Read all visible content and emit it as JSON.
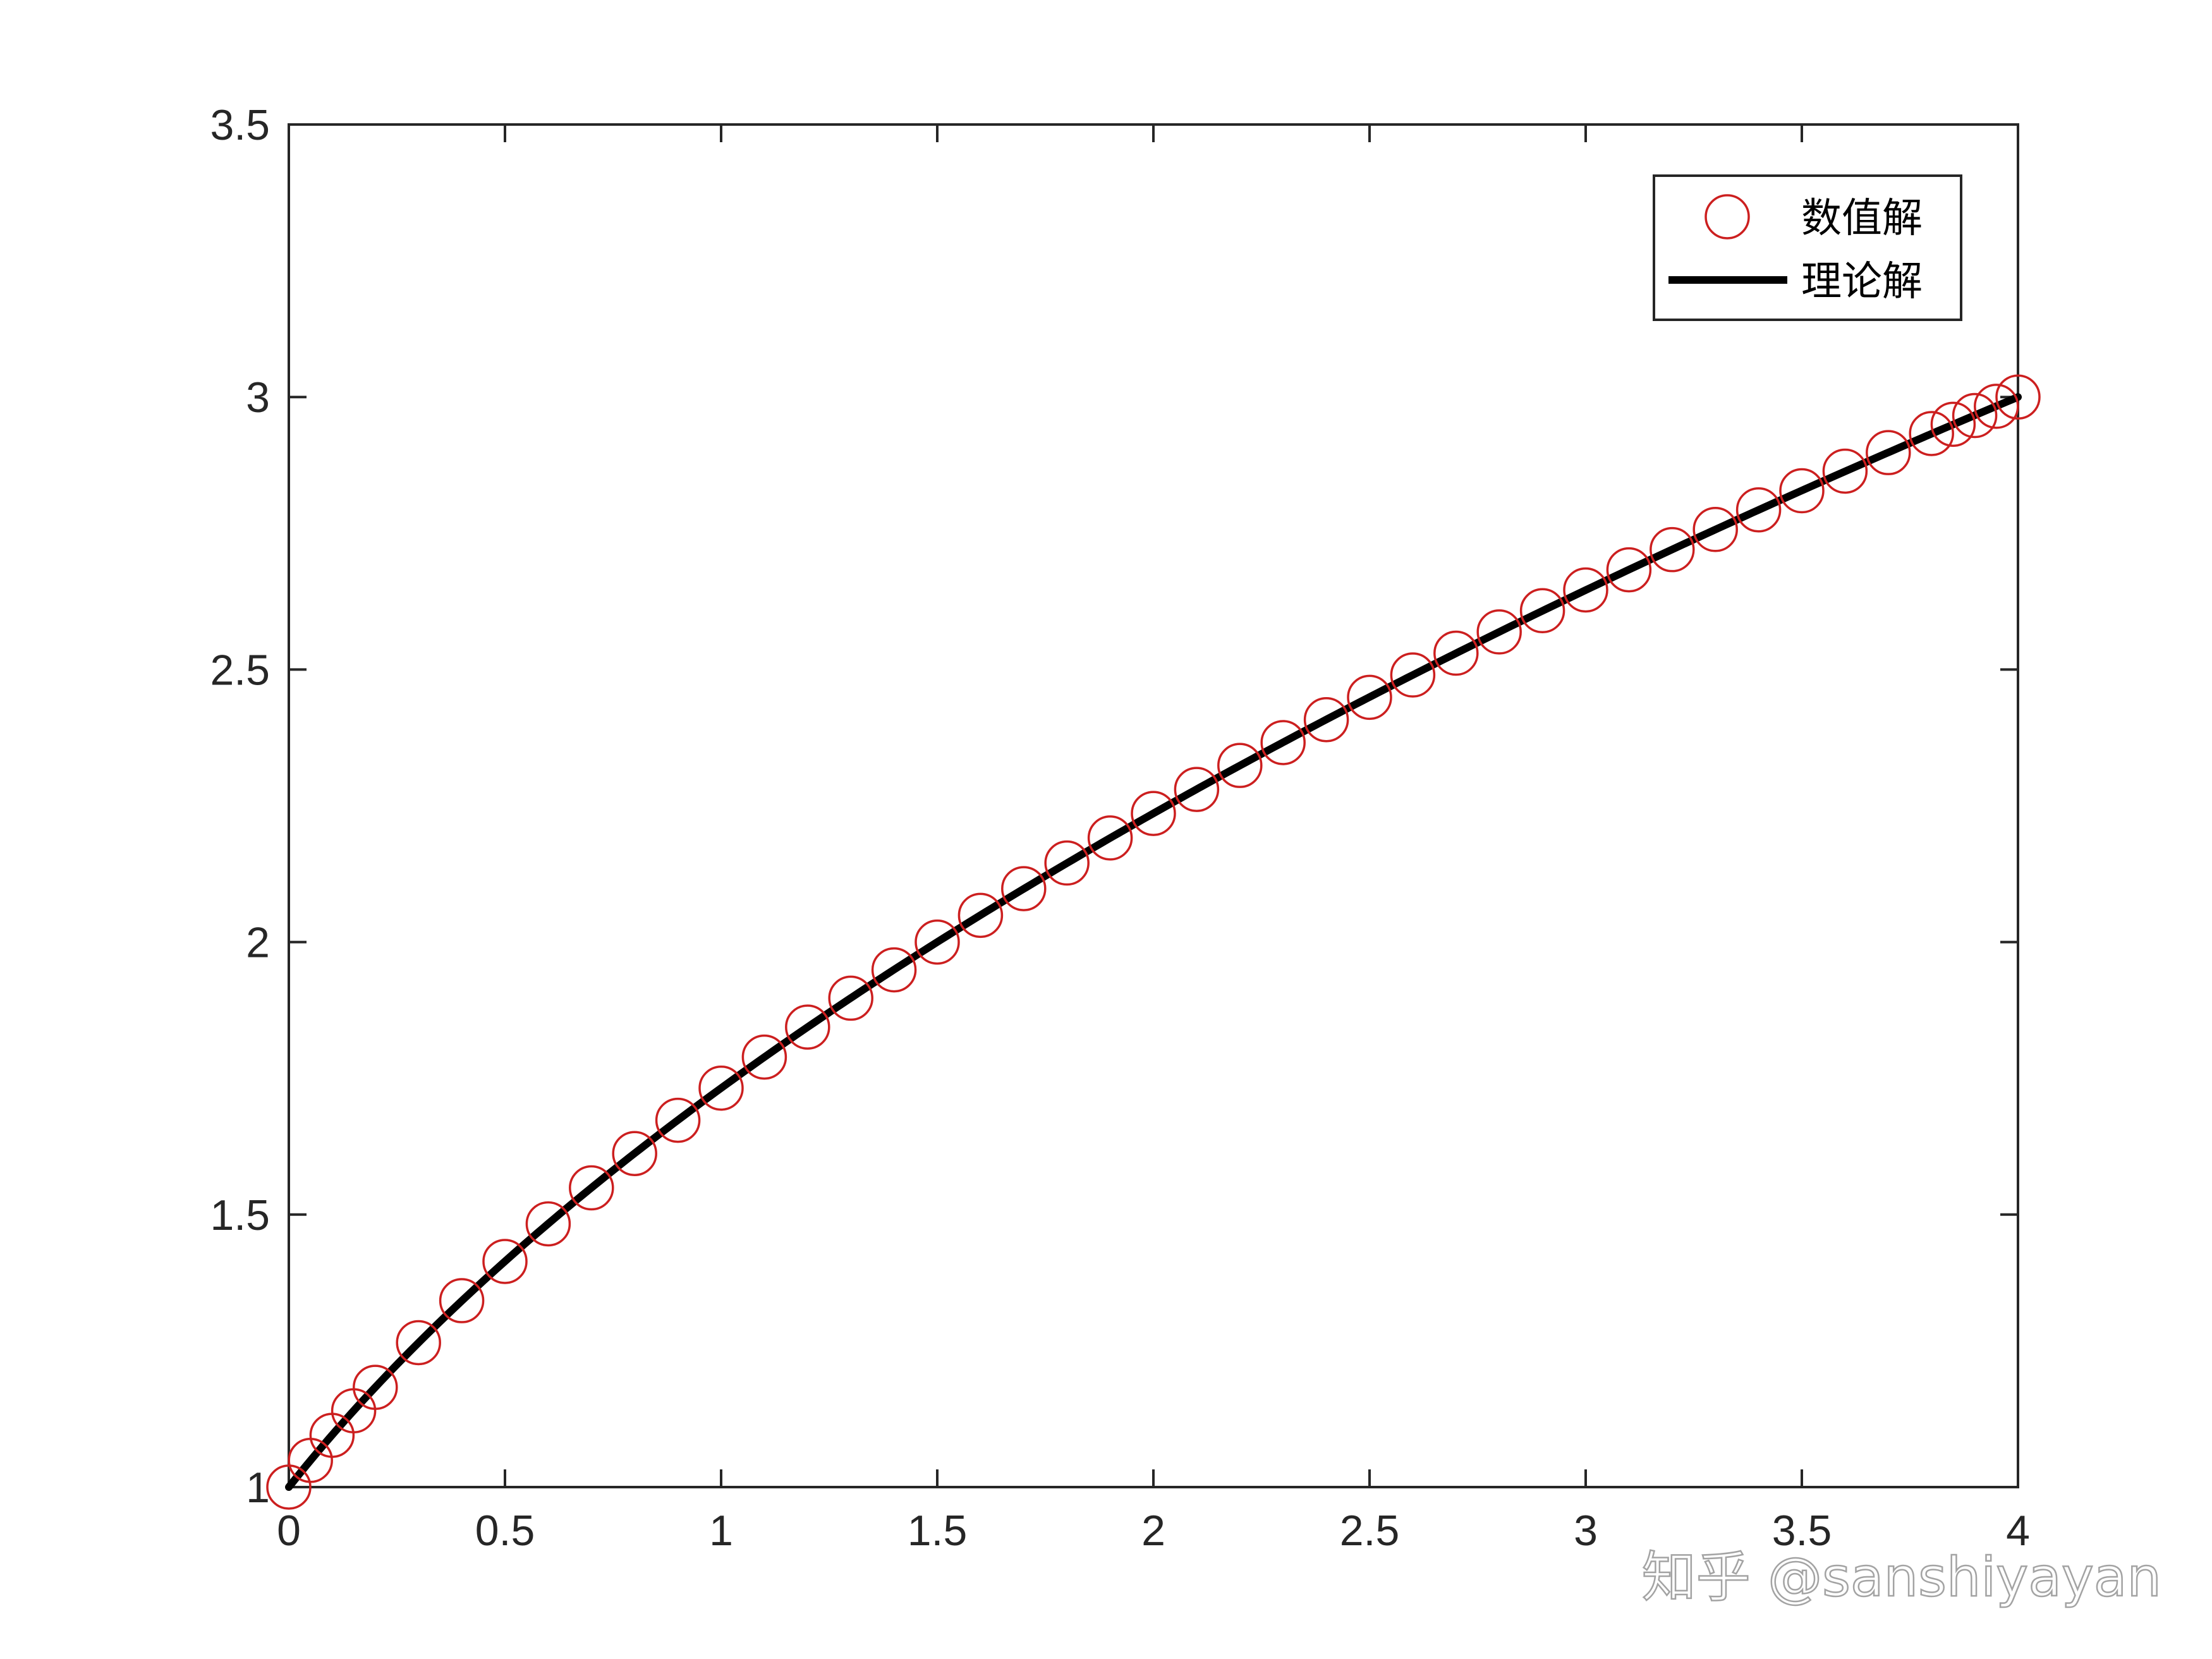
{
  "chart_data": {
    "type": "line",
    "title": "",
    "xlabel": "",
    "ylabel": "",
    "xlim": [
      0,
      4
    ],
    "ylim": [
      1,
      3.5
    ],
    "x_ticks": [
      0,
      0.5,
      1,
      1.5,
      2,
      2.5,
      3,
      3.5,
      4
    ],
    "x_tick_labels": [
      "0",
      "0.5",
      "1",
      "1.5",
      "2",
      "2.5",
      "3",
      "3.5",
      "4"
    ],
    "y_ticks": [
      1,
      1.5,
      2,
      2.5,
      3,
      3.5
    ],
    "y_tick_labels": [
      "1",
      "1.5",
      "2",
      "2.5",
      "3",
      "3.5"
    ],
    "grid": false,
    "legend_position": "top-right",
    "series": [
      {
        "name": "数值解",
        "style": "markers",
        "marker": "circle",
        "color": "#cc1f1f",
        "x": [
          0,
          0.05,
          0.1,
          0.15,
          0.2,
          0.3,
          0.4,
          0.5,
          0.6,
          0.7,
          0.8,
          0.9,
          1.0,
          1.1,
          1.2,
          1.3,
          1.4,
          1.5,
          1.6,
          1.7,
          1.8,
          1.9,
          2.0,
          2.1,
          2.2,
          2.3,
          2.4,
          2.5,
          2.6,
          2.7,
          2.8,
          2.9,
          3.0,
          3.1,
          3.2,
          3.3,
          3.4,
          3.5,
          3.6,
          3.7,
          3.8,
          3.85,
          3.9,
          3.95,
          4.0
        ],
        "y": [
          1.0,
          1.049,
          1.095,
          1.14,
          1.183,
          1.265,
          1.342,
          1.414,
          1.483,
          1.549,
          1.612,
          1.673,
          1.732,
          1.789,
          1.844,
          1.897,
          1.949,
          2.0,
          2.049,
          2.098,
          2.145,
          2.191,
          2.236,
          2.28,
          2.324,
          2.366,
          2.408,
          2.449,
          2.49,
          2.53,
          2.569,
          2.608,
          2.646,
          2.683,
          2.72,
          2.757,
          2.793,
          2.828,
          2.864,
          2.898,
          2.933,
          2.95,
          2.966,
          2.983,
          3.0
        ]
      },
      {
        "name": "理论解",
        "style": "line",
        "color": "#000000",
        "function": "y = sqrt(2x + 1)"
      }
    ]
  },
  "watermark": {
    "text": "知乎 @sanshiyayan"
  }
}
